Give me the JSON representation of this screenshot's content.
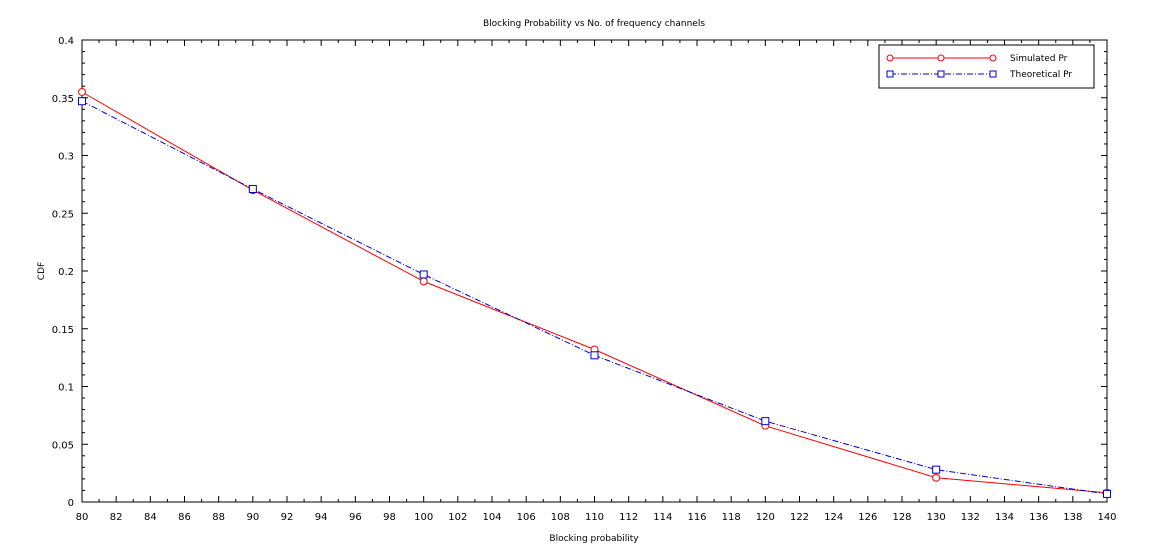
{
  "chart_data": {
    "type": "line",
    "title": "Blocking Probability vs No. of frequency channels",
    "xlabel": "Blocking probability",
    "ylabel": "CDF",
    "xlim": [
      80,
      140
    ],
    "ylim": [
      0,
      0.4
    ],
    "x_ticks": [
      "80",
      "82",
      "84",
      "86",
      "88",
      "90",
      "92",
      "94",
      "96",
      "98",
      "100",
      "102",
      "104",
      "106",
      "108",
      "110",
      "112",
      "114",
      "116",
      "118",
      "120",
      "122",
      "124",
      "126",
      "128",
      "130",
      "132",
      "134",
      "136",
      "138",
      "140"
    ],
    "y_ticks": [
      "0",
      "0.05",
      "0.1",
      "0.15",
      "0.2",
      "0.25",
      "0.3",
      "0.35",
      "0.4"
    ],
    "grid": false,
    "legend_position": "top-right",
    "x": [
      80,
      90,
      100,
      110,
      120,
      130,
      140
    ],
    "series": [
      {
        "name": "Simulated Pr",
        "values": [
          0.355,
          0.27,
          0.191,
          0.132,
          0.066,
          0.021,
          0.008
        ],
        "color": "#ff0000",
        "line_style": "solid",
        "marker": "circle"
      },
      {
        "name": "Theoretical Pr",
        "values": [
          0.347,
          0.271,
          0.197,
          0.127,
          0.07,
          0.028,
          0.007
        ],
        "color": "#0000cc",
        "line_style": "dash-dot",
        "marker": "square"
      }
    ]
  }
}
